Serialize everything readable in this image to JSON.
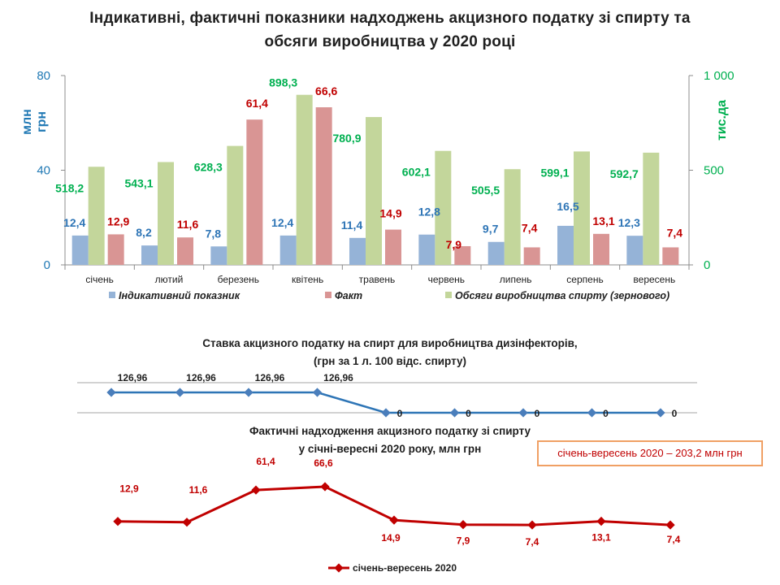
{
  "page": {
    "title": "Індикативні, фактичні показники надходжень акцизного податку зі спирту та обсяги виробництва у 2020 році",
    "title_line1": "Індикативні, фактичні показники надходжень акцизного податку зі спирту та",
    "title_line2": "обсяги виробництва у 2020 році",
    "callout": "січень-вересень 2020 – 203,2 млн грн"
  },
  "colors": {
    "indicative": "#95b3d7",
    "fact": "#d99594",
    "production": "#c3d69b",
    "indicative_label": "#2e75b6",
    "fact_label": "#c00000",
    "production_label": "#00b050",
    "rate_line": "#2e75b6",
    "revenue_line": "#c00000"
  },
  "chart_data": [
    {
      "type": "bar",
      "categories": [
        "січень",
        "лютий",
        "березень",
        "квітень",
        "травень",
        "червень",
        "липень",
        "серпень",
        "вересень"
      ],
      "ylabel_left": "млн грн",
      "ylabel_right": "тис.да",
      "ylim_left": [
        0,
        80
      ],
      "ylim_right": [
        0,
        1000
      ],
      "yticks_left": [
        "0",
        "40",
        "80"
      ],
      "yticks_right": [
        "0",
        "500",
        "1 000"
      ],
      "legend_position": "bottom",
      "series": [
        {
          "name": "Індикативний показник",
          "axis": "left",
          "values": [
            12.4,
            8.2,
            7.8,
            12.4,
            11.4,
            12.8,
            9.7,
            16.5,
            12.3
          ],
          "labels": [
            "12,4",
            "8,2",
            "7,8",
            "12,4",
            "11,4",
            "12,8",
            "9,7",
            "16,5",
            "12,3"
          ]
        },
        {
          "name": "Факт",
          "axis": "left",
          "values": [
            12.9,
            11.6,
            61.4,
            66.6,
            14.9,
            7.9,
            7.4,
            13.1,
            7.4
          ],
          "labels": [
            "12,9",
            "11,6",
            "61,4",
            "66,6",
            "14,9",
            "7,9",
            "7,4",
            "13,1",
            "7,4"
          ]
        },
        {
          "name": "Обсяги виробництва спирту (зернового)",
          "axis": "right",
          "values": [
            518.2,
            543.1,
            628.3,
            898.3,
            780.9,
            602.1,
            505.5,
            599.1,
            592.7
          ],
          "labels": [
            "518,2",
            "543,1",
            "628,3",
            "898,3",
            "780,9",
            "602,1",
            "505,5",
            "599,1",
            "592,7"
          ]
        }
      ]
    },
    {
      "type": "line",
      "title_line1": "Ставка акцизного податку на спирт для виробництва дизінфекторів,",
      "title_line2": "(грн за 1 л. 100 відс. спирту)",
      "values": [
        126.96,
        126.96,
        126.96,
        126.96,
        0,
        0,
        0,
        0,
        0
      ],
      "labels": [
        "126,96",
        "126,96",
        "126,96",
        "126,96",
        "0",
        "0",
        "0",
        "0",
        "0"
      ]
    },
    {
      "type": "line",
      "title_line1": "Фактичні надходження акцизного податку зі спирту",
      "title_line2": "у січні-вересні 2020 року, млн грн",
      "legend": "січень-вересень 2020",
      "values": [
        12.9,
        11.6,
        61.4,
        66.6,
        14.9,
        7.9,
        7.4,
        13.1,
        7.4
      ],
      "labels": [
        "12,9",
        "11,6",
        "61,4",
        "66,6",
        "14,9",
        "7,9",
        "7,4",
        "13,1",
        "7,4"
      ]
    }
  ]
}
